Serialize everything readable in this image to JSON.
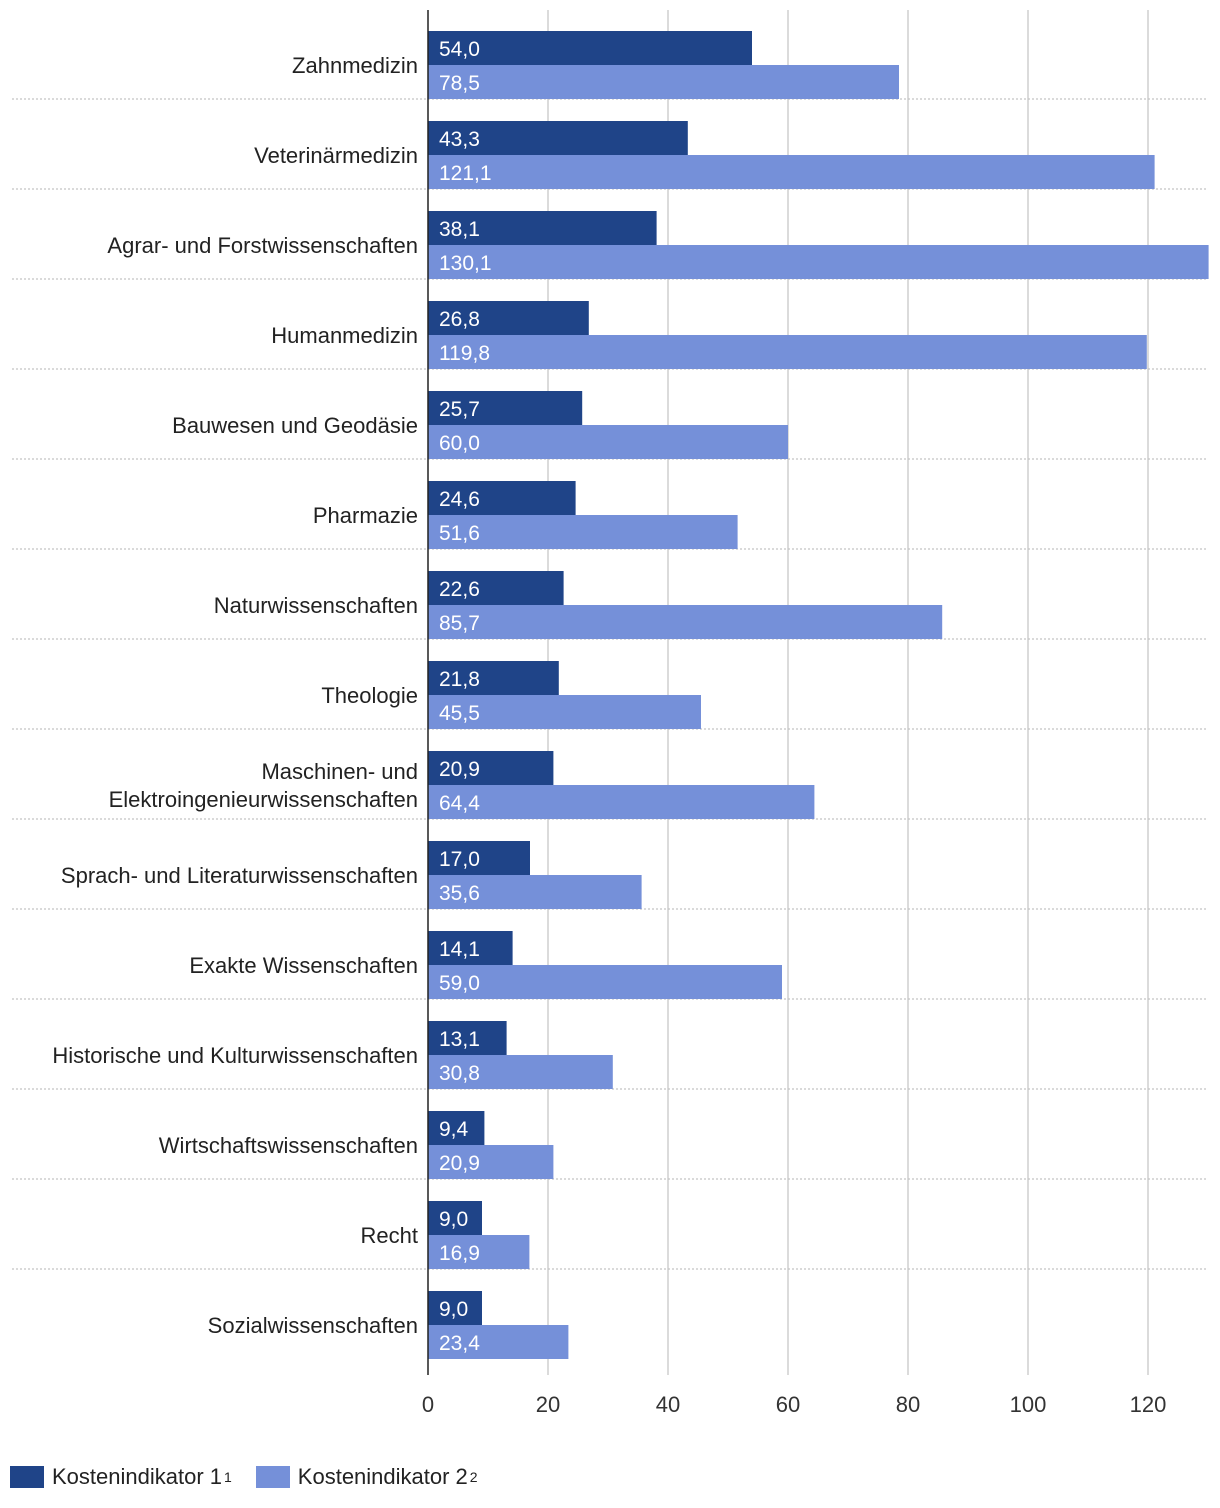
{
  "chart_data": {
    "type": "bar",
    "orientation": "horizontal",
    "categories": [
      [
        "Zahnmedizin"
      ],
      [
        "Veterinärmedizin"
      ],
      [
        "Agrar- und Forstwissenschaften"
      ],
      [
        "Humanmedizin"
      ],
      [
        "Bauwesen und Geodäsie"
      ],
      [
        "Pharmazie"
      ],
      [
        "Naturwissenschaften"
      ],
      [
        "Theologie"
      ],
      [
        "Maschinen- und",
        "Elektroingenieurwissenschaften"
      ],
      [
        "Sprach- und Literaturwissenschaften"
      ],
      [
        "Exakte Wissenschaften"
      ],
      [
        "Historische und Kulturwissenschaften"
      ],
      [
        "Wirtschaftswissenschaften"
      ],
      [
        "Recht"
      ],
      [
        "Sozialwissenschaften"
      ]
    ],
    "series": [
      {
        "name": "Kostenindikator 1",
        "footnote": "1",
        "color": "#1f4488",
        "values": [
          54.0,
          43.3,
          38.1,
          26.8,
          25.7,
          24.6,
          22.6,
          21.8,
          20.9,
          17.0,
          14.1,
          13.1,
          9.4,
          9.0,
          9.0
        ],
        "labels": [
          "54,0",
          "43,3",
          "38,1",
          "26,8",
          "25,7",
          "24,6",
          "22,6",
          "21,8",
          "20,9",
          "17,0",
          "14,1",
          "13,1",
          "9,4",
          "9,0",
          "9,0"
        ]
      },
      {
        "name": "Kostenindikator 2",
        "footnote": "2",
        "color": "#7590d9",
        "values": [
          78.5,
          121.1,
          130.1,
          119.8,
          60.0,
          51.6,
          85.7,
          45.5,
          64.4,
          35.6,
          59.0,
          30.8,
          20.9,
          16.9,
          23.4
        ],
        "labels": [
          "78,5",
          "121,1",
          "130,1",
          "119,8",
          "60,0",
          "51,6",
          "85,7",
          "45,5",
          "64,4",
          "35,6",
          "59,0",
          "30,8",
          "20,9",
          "16,9",
          "23,4"
        ]
      }
    ],
    "xlim": [
      0,
      130
    ],
    "xticks": [
      0,
      20,
      40,
      60,
      80,
      100,
      120
    ],
    "xtick_labels": [
      "0",
      "20",
      "40",
      "60",
      "80",
      "100",
      "120"
    ],
    "title": "",
    "xlabel": "",
    "ylabel": "",
    "grid": true,
    "legend_position": "bottom-left"
  }
}
